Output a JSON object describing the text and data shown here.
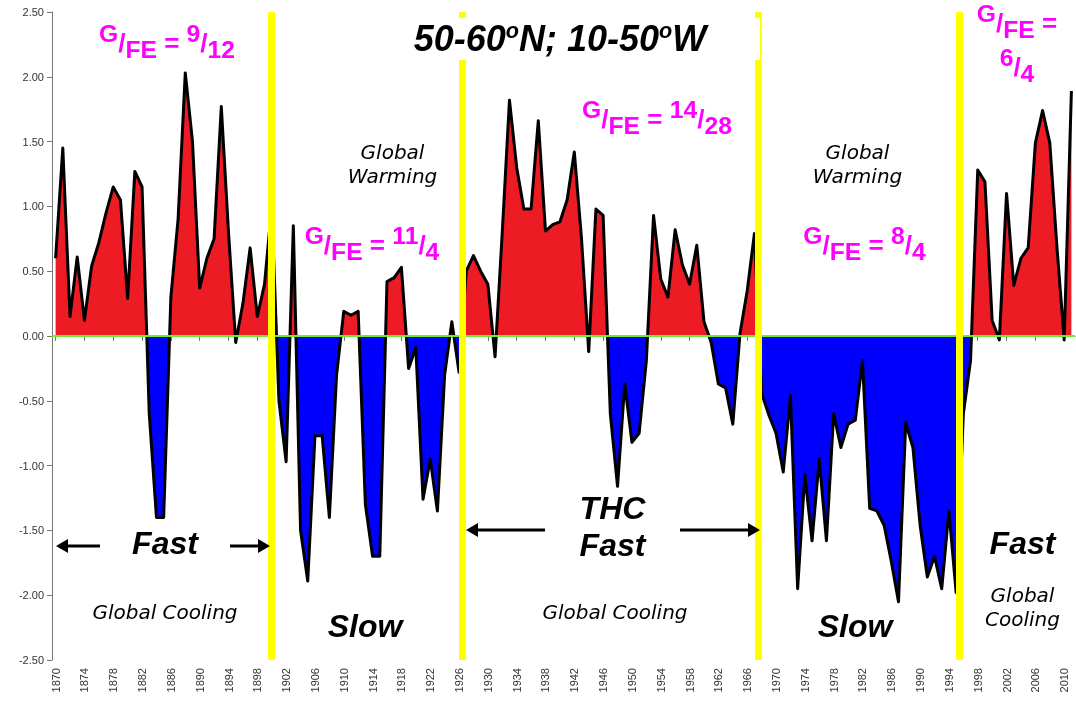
{
  "chart_data": {
    "type": "area",
    "title": "50-60$^{o}$N; 10-50$^{o}$W",
    "x": [
      1870,
      1871,
      1872,
      1873,
      1874,
      1875,
      1876,
      1877,
      1878,
      1879,
      1880,
      1881,
      1882,
      1883,
      1884,
      1885,
      1886,
      1887,
      1888,
      1889,
      1890,
      1891,
      1892,
      1893,
      1894,
      1895,
      1896,
      1897,
      1898,
      1899,
      1900,
      1901,
      1902,
      1903,
      1904,
      1905,
      1906,
      1907,
      1908,
      1909,
      1910,
      1911,
      1912,
      1913,
      1914,
      1915,
      1916,
      1917,
      1918,
      1919,
      1920,
      1921,
      1922,
      1923,
      1924,
      1925,
      1926,
      1927,
      1928,
      1929,
      1930,
      1931,
      1932,
      1933,
      1934,
      1935,
      1936,
      1937,
      1938,
      1939,
      1940,
      1941,
      1942,
      1943,
      1944,
      1945,
      1946,
      1947,
      1948,
      1949,
      1950,
      1951,
      1952,
      1953,
      1954,
      1955,
      1956,
      1957,
      1958,
      1959,
      1960,
      1961,
      1962,
      1963,
      1964,
      1965,
      1966,
      1967,
      1968,
      1969,
      1970,
      1971,
      1972,
      1973,
      1974,
      1975,
      1976,
      1977,
      1978,
      1979,
      1980,
      1981,
      1982,
      1983,
      1984,
      1985,
      1986,
      1987,
      1988,
      1989,
      1990,
      1991,
      1992,
      1993,
      1994,
      1995,
      1996,
      1997,
      1998,
      1999,
      2000,
      2001,
      2002,
      2003,
      2004,
      2005,
      2006,
      2007,
      2008,
      2009,
      2010,
      2011
    ],
    "series": [
      {
        "color": "#000000",
        "colors": [
          "#ed1c24",
          "#ed1c24",
          "#ed1c24",
          "#ed1c24",
          "#ed1c24",
          "#ed1c24",
          "#ed1c24",
          "#ed1c24",
          "#ed1c24",
          "#ed1c24",
          "#ed1c24",
          "#ed1c24",
          "#ed1c24",
          "#0000ff",
          "#0000ff",
          "#0000ff",
          "#ed1c24",
          "#ed1c24",
          "#ed1c24",
          "#ed1c24",
          "#ed1c24",
          "#ed1c24",
          "#ed1c24",
          "#ed1c24",
          "#ed1c24",
          "#0000ff",
          "#ed1c24",
          "#ed1c24",
          "#ed1c24",
          "#ed1c24",
          "#ed1c24",
          "#0000ff",
          "#0000ff",
          "#ed1c24",
          "#0000ff",
          "#0000ff",
          "#0000ff",
          "#0000ff",
          "#0000ff",
          "#0000ff",
          "#ed1c24",
          "#ed1c24",
          "#ed1c24",
          "#0000ff",
          "#0000ff",
          "#0000ff",
          "#ed1c24",
          "#ed1c24",
          "#ed1c24",
          "#0000ff",
          "#0000ff",
          "#0000ff",
          "#0000ff",
          "#0000ff",
          "#0000ff",
          "#ed1c24",
          "#0000ff",
          "#ed1c24",
          "#ed1c24",
          "#ed1c24",
          "#ed1c24",
          "#0000ff",
          "#ed1c24",
          "#ed1c24",
          "#ed1c24",
          "#ed1c24",
          "#ed1c24",
          "#ed1c24",
          "#ed1c24",
          "#ed1c24",
          "#ed1c24",
          "#ed1c24",
          "#ed1c24",
          "#ed1c24",
          "#0000ff",
          "#ed1c24",
          "#ed1c24",
          "#0000ff",
          "#0000ff",
          "#0000ff",
          "#0000ff",
          "#0000ff",
          "#0000ff",
          "#ed1c24",
          "#ed1c24",
          "#ed1c24",
          "#ed1c24",
          "#ed1c24",
          "#ed1c24",
          "#ed1c24",
          "#ed1c24",
          "#0000ff",
          "#0000ff",
          "#0000ff",
          "#0000ff",
          "#ed1c24",
          "#ed1c24",
          "#ed1c24",
          "#0000ff",
          "#0000ff",
          "#0000ff",
          "#0000ff",
          "#0000ff",
          "#0000ff",
          "#0000ff",
          "#0000ff",
          "#0000ff",
          "#0000ff",
          "#0000ff",
          "#0000ff",
          "#0000ff",
          "#0000ff",
          "#0000ff",
          "#0000ff",
          "#0000ff",
          "#0000ff",
          "#0000ff",
          "#0000ff",
          "#0000ff",
          "#0000ff",
          "#0000ff",
          "#0000ff",
          "#0000ff",
          "#0000ff",
          "#0000ff",
          "#0000ff",
          "#0000ff",
          "#0000ff",
          "#ed1c24",
          "#ed1c24",
          "#ed1c24",
          "#0000ff",
          "#ed1c24",
          "#ed1c24",
          "#ed1c24",
          "#ed1c24",
          "#ed1c24",
          "#ed1c24",
          "#ed1c24",
          "#ed1c24",
          "#0000ff",
          "#ed1c24"
        ],
        "values": [
          0.6,
          1.45,
          0.15,
          0.61,
          0.12,
          0.54,
          0.72,
          0.95,
          1.15,
          1.05,
          0.29,
          1.27,
          1.15,
          -0.6,
          -1.4,
          -1.4,
          0.3,
          0.9,
          2.03,
          1.5,
          0.37,
          0.6,
          0.75,
          1.77,
          0.8,
          -0.05,
          0.25,
          0.68,
          0.15,
          0.4,
          1.0,
          -0.5,
          -0.97,
          0.85,
          -1.5,
          -1.89,
          -0.77,
          -0.77,
          -1.4,
          -0.3,
          0.19,
          0.16,
          0.19,
          -1.3,
          -1.7,
          -1.7,
          0.42,
          0.45,
          0.53,
          -0.25,
          -0.09,
          -1.26,
          -0.95,
          -1.35,
          -0.3,
          0.11,
          -0.28,
          0.5,
          0.62,
          0.5,
          0.4,
          -0.16,
          0.8,
          1.82,
          1.3,
          0.98,
          0.98,
          1.66,
          0.81,
          0.86,
          0.88,
          1.05,
          1.42,
          0.75,
          -0.12,
          0.98,
          0.93,
          -0.6,
          -1.16,
          -0.37,
          -0.82,
          -0.75,
          -0.19,
          0.93,
          0.44,
          0.3,
          0.82,
          0.55,
          0.4,
          0.7,
          0.11,
          -0.05,
          -0.37,
          -0.4,
          -0.68,
          0.02,
          0.35,
          0.79,
          -0.44,
          -0.61,
          -0.75,
          -1.05,
          -0.46,
          -1.95,
          -1.07,
          -1.58,
          -0.95,
          -1.58,
          -0.6,
          -0.86,
          -0.68,
          -0.65,
          -0.19,
          -1.33,
          -1.35,
          -1.46,
          -1.74,
          -2.05,
          -0.67,
          -0.86,
          -1.46,
          -1.86,
          -1.7,
          -1.95,
          -1.35,
          -1.98,
          -0.6,
          -0.19,
          1.28,
          1.19,
          0.12,
          -0.03,
          1.1,
          0.39,
          0.6,
          0.68,
          1.49,
          1.74,
          1.49,
          0.68,
          -0.03,
          1.89
        ]
      }
    ],
    "xlim": [
      1869.5,
      2011.5
    ],
    "xticks": [
      1870,
      1874,
      1878,
      1882,
      1886,
      1890,
      1894,
      1898,
      1902,
      1906,
      1910,
      1914,
      1918,
      1922,
      1926,
      1930,
      1934,
      1938,
      1942,
      1946,
      1950,
      1954,
      1958,
      1962,
      1966,
      1970,
      1974,
      1978,
      1982,
      1986,
      1990,
      1994,
      1998,
      2002,
      2006,
      2010
    ],
    "ylim": [
      -2.5,
      2.5
    ],
    "yticks": [
      {
        "value": -2.5,
        "label": "-2.50"
      },
      {
        "value": -2,
        "label": "-2.00"
      },
      {
        "value": -1.5,
        "label": "-1.50"
      },
      {
        "value": -1,
        "label": "-1.00"
      },
      {
        "value": -0.5,
        "label": "-0.50"
      },
      {
        "value": 0,
        "label": "0.00"
      },
      {
        "value": 0.5,
        "label": "0.50"
      },
      {
        "value": 1,
        "label": "1.00"
      },
      {
        "value": 1.5,
        "label": "1.50"
      },
      {
        "value": 2,
        "label": "2.00"
      },
      {
        "value": 2.5,
        "label": "2.50"
      }
    ],
    "ref_lines": [
      {
        "axis": "y",
        "value": 0,
        "color": "#66ee33"
      },
      {
        "axis": "x",
        "value": 1900,
        "color": "#ffff00"
      },
      {
        "axis": "x",
        "value": 1926.5,
        "color": "#ffff00"
      },
      {
        "axis": "x",
        "value": 1967.5,
        "color": "#ffff00"
      },
      {
        "axis": "x",
        "value": 1995.5,
        "color": "#ffff00"
      }
    ],
    "annotations": [
      "$^{G}$/$_{FE}$ = $^{9}$/$_{12}$",
      "Global Warming",
      "$^{G}$/$_{FE}$ = $^{11}$/$_{4}$",
      "$^{G}$/$_{FE}$ = $^{14}$/$_{28}$",
      "Global Warming",
      "$^{G}$/$_{FE}$ = $^{8}$/$_{4}$",
      "$^{G}$/$_{FE}$ = $^{6}$/$_{4}$",
      "Fast",
      "Global Cooling",
      "Slow",
      "THC Fast",
      "Global Cooling",
      "Slow",
      "Fast",
      "Global Cooling"
    ]
  }
}
